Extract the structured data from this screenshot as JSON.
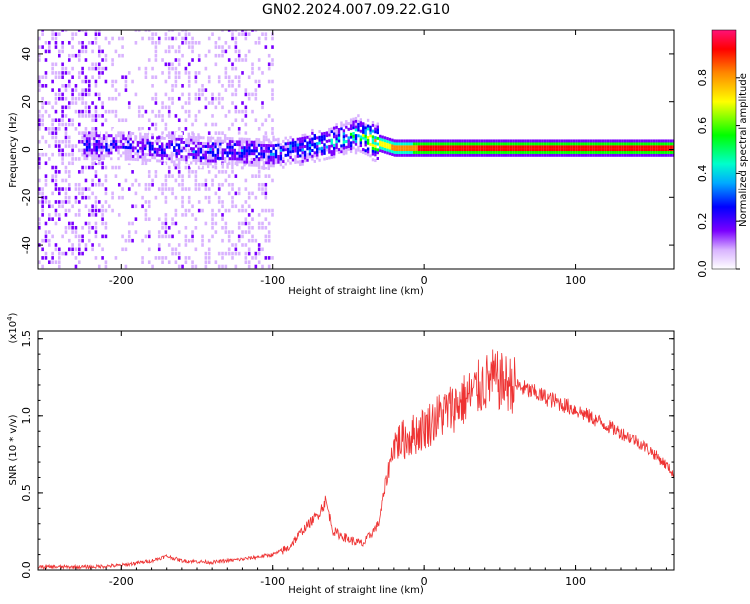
{
  "title": "GN02.2024.007.09.22.G10",
  "chart_data": [
    {
      "type": "heatmap",
      "xlabel": "Height of straight line (km)",
      "ylabel": "Frequency (Hz)",
      "xlim": [
        -255,
        165
      ],
      "ylim": [
        -50,
        50
      ],
      "x_ticks": [
        -200,
        -100,
        0,
        100
      ],
      "y_ticks": [
        -40,
        -20,
        0,
        20,
        40
      ],
      "colorbar": {
        "label": "Normalized spectral amplitude",
        "ticks": [
          "0.0",
          "0.2",
          "0.4",
          "0.6",
          "0.8"
        ],
        "range": [
          0,
          1
        ]
      },
      "ridge": [
        {
          "x": -200,
          "freq": 1,
          "amp": 0.25
        },
        {
          "x": -150,
          "freq": -1,
          "amp": 0.3
        },
        {
          "x": -100,
          "freq": -2,
          "amp": 0.3
        },
        {
          "x": -80,
          "freq": 0,
          "amp": 0.35
        },
        {
          "x": -60,
          "freq": 3,
          "amp": 0.4
        },
        {
          "x": -45,
          "freq": 6,
          "amp": 0.5
        },
        {
          "x": -35,
          "freq": 3,
          "amp": 0.7
        },
        {
          "x": -20,
          "freq": 0,
          "amp": 0.9
        },
        {
          "x": 0,
          "freq": 0,
          "amp": 1.0
        },
        {
          "x": 100,
          "freq": 0,
          "amp": 1.0
        },
        {
          "x": 165,
          "freq": 0,
          "amp": 1.0
        }
      ]
    },
    {
      "type": "line",
      "xlabel": "Height of straight line (km)",
      "ylabel": "SNR (10 * v/v)",
      "y_multiplier": "(x10",
      "y_multiplier_exp": "4",
      "y_multiplier_close": ")",
      "xlim": [
        -255,
        165
      ],
      "ylim": [
        0,
        1.55
      ],
      "x_ticks": [
        -200,
        -100,
        0,
        100
      ],
      "y_ticks": [
        "0.0",
        "0.5",
        "1.0",
        "1.5"
      ],
      "color": "#ee3333",
      "x": [
        -255,
        -220,
        -200,
        -180,
        -170,
        -160,
        -140,
        -120,
        -100,
        -90,
        -80,
        -70,
        -65,
        -60,
        -50,
        -45,
        -40,
        -30,
        -25,
        -20,
        -15,
        -10,
        0,
        10,
        20,
        30,
        40,
        45,
        50,
        60,
        70,
        80,
        90,
        100,
        120,
        140,
        150,
        160,
        165
      ],
      "y": [
        0.02,
        0.02,
        0.03,
        0.06,
        0.09,
        0.06,
        0.05,
        0.07,
        0.1,
        0.14,
        0.26,
        0.36,
        0.45,
        0.25,
        0.2,
        0.18,
        0.17,
        0.3,
        0.58,
        0.82,
        0.84,
        0.86,
        0.92,
        1.0,
        1.06,
        1.13,
        1.21,
        1.24,
        1.22,
        1.2,
        1.16,
        1.12,
        1.08,
        1.04,
        0.94,
        0.84,
        0.77,
        0.68,
        0.62
      ]
    }
  ]
}
